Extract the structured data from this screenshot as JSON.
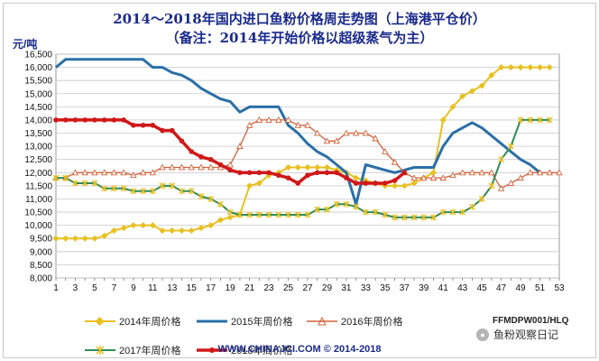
{
  "chart_data": {
    "type": "line",
    "title": "2014～2018年国内进口鱼粉价格周走势图（上海港平仓价）",
    "subtitle": "（备注：2014年开始价格以超级蒸气为主）",
    "ylabel": "元/吨",
    "ylim": [
      8000,
      16500
    ],
    "yticks": [
      8000,
      8500,
      9000,
      9500,
      10000,
      10500,
      11000,
      11500,
      12000,
      12500,
      13000,
      13500,
      14000,
      14500,
      15000,
      15500,
      16000,
      16500
    ],
    "ytick_labels": [
      "8,000",
      "8,500",
      "9,000",
      "9,500",
      "10,000",
      "10,500",
      "11,000",
      "11,500",
      "12,000",
      "12,500",
      "13,000",
      "13,500",
      "14,000",
      "14,500",
      "15,000",
      "15,500",
      "16,000",
      "16,500"
    ],
    "xlim": [
      1,
      53
    ],
    "xticks": [
      1,
      3,
      5,
      7,
      9,
      11,
      13,
      15,
      17,
      19,
      21,
      23,
      25,
      27,
      29,
      31,
      33,
      35,
      37,
      39,
      41,
      43,
      45,
      47,
      49,
      51,
      53
    ],
    "grid": true,
    "legend_position": "bottom",
    "series": [
      {
        "name": "2014年周价格",
        "color": "#e8c020",
        "marker": "diamond",
        "x": [
          1,
          2,
          3,
          4,
          5,
          6,
          7,
          8,
          9,
          10,
          11,
          12,
          13,
          14,
          15,
          16,
          17,
          18,
          19,
          20,
          21,
          22,
          23,
          24,
          25,
          26,
          27,
          28,
          29,
          30,
          31,
          32,
          33,
          34,
          35,
          36,
          37,
          38,
          39,
          40,
          41,
          42,
          43,
          44,
          45,
          46,
          47,
          48,
          49,
          50,
          51,
          52
        ],
        "values": [
          9500,
          9500,
          9500,
          9500,
          9500,
          9600,
          9800,
          9900,
          10000,
          10000,
          10000,
          9800,
          9800,
          9800,
          9800,
          9900,
          10000,
          10200,
          10300,
          10400,
          11500,
          11600,
          11900,
          12000,
          12200,
          12200,
          12200,
          12200,
          12200,
          12100,
          12000,
          11800,
          11700,
          11600,
          11500,
          11500,
          11500,
          11600,
          11800,
          12000,
          14000,
          14500,
          14900,
          15100,
          15300,
          15700,
          16000,
          16000,
          16000,
          16000,
          16000,
          16000
        ]
      },
      {
        "name": "2015年周价格",
        "color": "#2a6fa8",
        "marker": "none",
        "x": [
          1,
          2,
          3,
          4,
          5,
          6,
          7,
          8,
          9,
          10,
          11,
          12,
          13,
          14,
          15,
          16,
          17,
          18,
          19,
          20,
          21,
          22,
          23,
          24,
          25,
          26,
          27,
          28,
          29,
          30,
          31,
          32,
          33,
          34,
          35,
          36,
          37,
          38,
          39,
          40,
          41,
          42,
          43,
          44,
          45,
          46,
          47,
          48,
          49,
          50,
          51
        ],
        "values": [
          16000,
          16300,
          16300,
          16300,
          16300,
          16300,
          16300,
          16300,
          16300,
          16300,
          16000,
          16000,
          15800,
          15700,
          15500,
          15200,
          15000,
          14800,
          14700,
          14300,
          14500,
          14500,
          14500,
          14500,
          13800,
          13500,
          13100,
          12800,
          12600,
          12300,
          12000,
          10800,
          12300,
          12200,
          12100,
          12000,
          12100,
          12200,
          12200,
          12200,
          13000,
          13500,
          13700,
          13900,
          13700,
          13400,
          13100,
          12800,
          12500,
          12300,
          12000
        ]
      },
      {
        "name": "2016年周价格",
        "color": "#d4603a",
        "marker": "triangle",
        "x": [
          1,
          2,
          3,
          4,
          5,
          6,
          7,
          8,
          9,
          10,
          11,
          12,
          13,
          14,
          15,
          16,
          17,
          18,
          19,
          20,
          21,
          22,
          23,
          24,
          25,
          26,
          27,
          28,
          29,
          30,
          31,
          32,
          33,
          34,
          35,
          36,
          37,
          38,
          39,
          40,
          41,
          42,
          43,
          44,
          45,
          46,
          47,
          48,
          49,
          50,
          51,
          52,
          53
        ],
        "values": [
          11800,
          11800,
          12000,
          12000,
          12000,
          12000,
          12000,
          12000,
          11900,
          12000,
          12000,
          12200,
          12200,
          12200,
          12200,
          12200,
          12200,
          12200,
          12300,
          13000,
          13800,
          14000,
          14000,
          14000,
          14000,
          13800,
          13800,
          13500,
          13200,
          13200,
          13500,
          13500,
          13500,
          13300,
          12800,
          12400,
          12000,
          11800,
          11800,
          11800,
          11800,
          11900,
          12000,
          12000,
          12000,
          12000,
          11400,
          11600,
          11800,
          12000,
          12000,
          12000,
          12000
        ]
      },
      {
        "name": "2017年周价格",
        "color": "#2e8b57",
        "marker": "star",
        "x": [
          1,
          2,
          3,
          4,
          5,
          6,
          7,
          8,
          9,
          10,
          11,
          12,
          13,
          14,
          15,
          16,
          17,
          18,
          19,
          20,
          21,
          22,
          23,
          24,
          25,
          26,
          27,
          28,
          29,
          30,
          31,
          32,
          33,
          34,
          35,
          36,
          37,
          38,
          39,
          40,
          41,
          42,
          43,
          44,
          45,
          46,
          47,
          48,
          49,
          50,
          51,
          52
        ],
        "values": [
          11800,
          11800,
          11600,
          11600,
          11600,
          11400,
          11400,
          11400,
          11300,
          11300,
          11300,
          11500,
          11500,
          11300,
          11300,
          11100,
          11000,
          10800,
          10500,
          10400,
          10400,
          10400,
          10400,
          10400,
          10400,
          10400,
          10400,
          10600,
          10600,
          10800,
          10800,
          10700,
          10500,
          10500,
          10400,
          10300,
          10300,
          10300,
          10300,
          10300,
          10500,
          10500,
          10500,
          10700,
          11000,
          11500,
          12500,
          13000,
          14000,
          14000,
          14000,
          14000
        ]
      },
      {
        "name": "2018年周价格",
        "color": "#d01818",
        "marker": "circle",
        "x": [
          1,
          2,
          3,
          4,
          5,
          6,
          7,
          8,
          9,
          10,
          11,
          12,
          13,
          14,
          15,
          16,
          17,
          18,
          19,
          20,
          21,
          22,
          23,
          24,
          25,
          26,
          27,
          28,
          29,
          30,
          31,
          32,
          33,
          34,
          35,
          36,
          37
        ],
        "values": [
          14000,
          14000,
          14000,
          14000,
          14000,
          14000,
          14000,
          14000,
          13800,
          13800,
          13800,
          13600,
          13600,
          13200,
          12800,
          12600,
          12500,
          12300,
          12100,
          12000,
          12000,
          12000,
          12000,
          11900,
          11800,
          11600,
          11900,
          12000,
          12000,
          12000,
          11800,
          11600,
          11600,
          11600,
          11600,
          11700,
          12000
        ]
      }
    ]
  },
  "legend": {
    "items": [
      {
        "label": "2014年周价格"
      },
      {
        "label": "2015年周价格"
      },
      {
        "label": "2016年周价格"
      },
      {
        "label": "2017年周价格"
      },
      {
        "label": "2018年周价格"
      }
    ]
  },
  "code_label": "FFMDPW001/HLQ",
  "brand_label": "鱼粉观察日记",
  "footer_text": "WWW.CHINAJCI.COM   © 2014-2018"
}
